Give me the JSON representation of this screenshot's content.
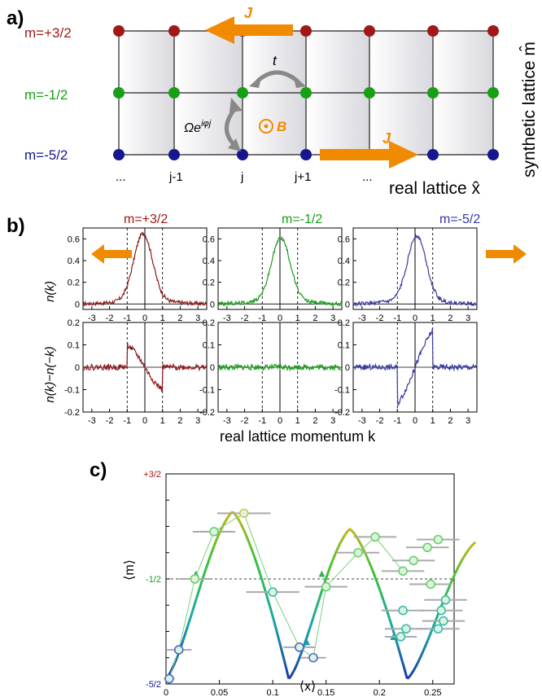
{
  "panel_a": {
    "label": "a)",
    "rows": [
      {
        "label": "m=+3/2",
        "color": "#a01818"
      },
      {
        "label": "m=-1/2",
        "color": "#16a016"
      },
      {
        "label": "m=-5/2",
        "color": "#16168f"
      }
    ],
    "col_labels": [
      "...",
      "j-1",
      "j",
      "j+1",
      "..."
    ],
    "arrow_J_top": "J",
    "arrow_J_bottom": "J",
    "hop_t": "t",
    "coupling_omega": "Ωe",
    "coupling_phase": "iφj",
    "field_B": "B",
    "axis_real": "real lattice x̂",
    "axis_synthetic": "synthetic lattice m̂",
    "arrow_color": "#f08a00"
  },
  "panel_b": {
    "label": "b)",
    "titles": [
      "m=+3/2",
      "m=-1/2",
      "m=-5/2"
    ],
    "title_colors": [
      "#a01818",
      "#16a016",
      "#3636a8"
    ],
    "ylabel_top": "n(k)",
    "ylabel_bottom": "n(k)−n(−k)",
    "xlabel": "real lattice momentum k",
    "chart_data": [
      {
        "type": "line",
        "name": "n(k) m=+3/2",
        "x_range": [
          -3.5,
          3.5
        ],
        "ylim": [
          -0.05,
          0.7
        ],
        "xticks": [
          -3,
          -2,
          -1,
          0,
          1,
          2,
          3
        ],
        "yticks": [
          0,
          0.2,
          0.4,
          0.6
        ],
        "peak": 0.62,
        "peak_x": -0.1,
        "vlines": [
          -1,
          0,
          1
        ]
      },
      {
        "type": "line",
        "name": "n(k) m=-1/2",
        "x_range": [
          -3.5,
          3.5
        ],
        "ylim": [
          -0.05,
          0.7
        ],
        "xticks": [
          -3,
          -2,
          -1,
          0,
          1,
          2,
          3
        ],
        "yticks": [
          0,
          0.2,
          0.4,
          0.6
        ],
        "peak": 0.58,
        "peak_x": 0.05,
        "vlines": [
          -1,
          0,
          1
        ]
      },
      {
        "type": "line",
        "name": "n(k) m=-5/2",
        "x_range": [
          -3.5,
          3.5
        ],
        "ylim": [
          -0.05,
          0.7
        ],
        "xticks": [
          -3,
          -2,
          -1,
          0,
          1,
          2,
          3
        ],
        "yticks": [
          0,
          0.2,
          0.4,
          0.6
        ],
        "peak": 0.6,
        "peak_x": 0.1,
        "vlines": [
          -1,
          0,
          1
        ]
      },
      {
        "type": "line",
        "name": "asym m=+3/2",
        "x_range": [
          -3.5,
          3.5
        ],
        "ylim": [
          -0.2,
          0.2
        ],
        "xticks": [
          -3,
          -2,
          -1,
          0,
          1,
          2,
          3
        ],
        "yticks": [
          -0.2,
          -0.1,
          0,
          0.1,
          0.2
        ],
        "amp": 0.11,
        "vlines": [
          -1,
          0,
          1
        ]
      },
      {
        "type": "line",
        "name": "asym m=-1/2",
        "x_range": [
          -3.5,
          3.5
        ],
        "ylim": [
          -0.2,
          0.2
        ],
        "xticks": [
          -3,
          -2,
          -1,
          0,
          1,
          2,
          3
        ],
        "yticks": [
          -0.2,
          -0.1,
          0,
          0.1,
          0.2
        ],
        "amp": 0.0,
        "vlines": [
          -1,
          0,
          1
        ]
      },
      {
        "type": "line",
        "name": "asym m=-5/2",
        "x_range": [
          -3.5,
          3.5
        ],
        "ylim": [
          -0.2,
          0.2
        ],
        "xticks": [
          -3,
          -2,
          -1,
          0,
          1,
          2,
          3
        ],
        "yticks": [
          -0.2,
          -0.1,
          0,
          0.1,
          0.2
        ],
        "amp": -0.16,
        "vlines": [
          -1,
          0,
          1
        ]
      }
    ],
    "tick_labels_x": [
      "-3",
      "-2",
      "-1",
      "0",
      "1",
      "2",
      "3"
    ],
    "tick_labels_y_top": [
      "0",
      "0.2",
      "0.4",
      "0.6"
    ],
    "tick_labels_y_bottom": [
      "-0.2",
      "-0.1",
      "0",
      "0.1",
      "0.2"
    ]
  },
  "panel_c": {
    "label": "c)",
    "xlabel": "⟨x⟩",
    "ylabel": "⟨m⟩",
    "ytick_labels": [
      {
        "text": "+3/2",
        "color": "#a01818"
      },
      {
        "text": "-1/2",
        "color": "#16a016"
      },
      {
        "text": "-5/2",
        "color": "#16168f"
      }
    ],
    "xtick_labels": [
      "0",
      "0.05",
      "0.1",
      "0.15",
      "0.2",
      "0.25"
    ],
    "chart_data": {
      "type": "scatter",
      "xlim": [
        0,
        0.27
      ],
      "ylim": [
        -2.5,
        1.5
      ],
      "points": [
        {
          "x": 0.003,
          "y": -2.4,
          "xerr": 0.005
        },
        {
          "x": 0.012,
          "y": -1.85,
          "xerr": 0.012
        },
        {
          "x": 0.027,
          "y": -0.5,
          "xerr": 0.015
        },
        {
          "x": 0.045,
          "y": 0.4,
          "xerr": 0.02
        },
        {
          "x": 0.073,
          "y": 0.75,
          "xerr": 0.025
        },
        {
          "x": 0.1,
          "y": -0.75,
          "xerr": 0.025
        },
        {
          "x": 0.125,
          "y": -1.8,
          "xerr": 0.015
        },
        {
          "x": 0.138,
          "y": -2.0,
          "xerr": 0.012
        },
        {
          "x": 0.15,
          "y": -0.65,
          "xerr": 0.02
        },
        {
          "x": 0.18,
          "y": 0.0,
          "xerr": 0.02
        },
        {
          "x": 0.196,
          "y": 0.3,
          "xerr": 0.02
        },
        {
          "x": 0.222,
          "y": -0.35,
          "xerr": 0.02
        },
        {
          "x": 0.232,
          "y": -0.15,
          "xerr": 0.02
        },
        {
          "x": 0.245,
          "y": 0.1,
          "xerr": 0.02
        },
        {
          "x": 0.255,
          "y": 0.25,
          "xerr": 0.02
        },
        {
          "x": 0.248,
          "y": -0.6,
          "xerr": 0.02
        },
        {
          "x": 0.262,
          "y": -0.9,
          "xerr": 0.02
        },
        {
          "x": 0.258,
          "y": -1.1,
          "xerr": 0.02
        },
        {
          "x": 0.26,
          "y": -1.3,
          "xerr": 0.02
        },
        {
          "x": 0.255,
          "y": -1.45,
          "xerr": 0.02
        },
        {
          "x": 0.222,
          "y": -1.1,
          "xerr": 0.02
        },
        {
          "x": 0.225,
          "y": -1.45,
          "xerr": 0.02
        },
        {
          "x": 0.22,
          "y": -1.6,
          "xerr": 0.015
        }
      ],
      "theory_curve": "cycloid-like arcs peaking near x=0.06 and x=0.17, cusps at x≈0.115 and x≈0.225",
      "reference_line_y": -0.5
    }
  }
}
